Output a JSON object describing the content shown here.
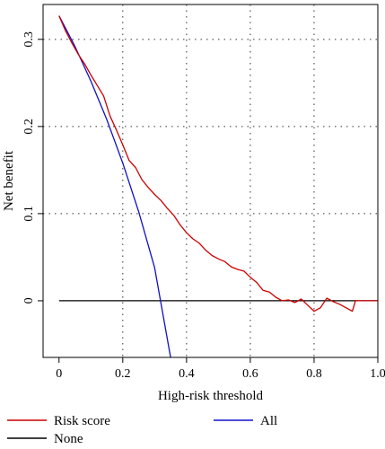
{
  "chart_data": {
    "type": "line",
    "xlabel": "High-risk threshold",
    "ylabel": "Net benefit",
    "xlim": [
      -0.05,
      1.0
    ],
    "ylim": [
      -0.065,
      0.34
    ],
    "x_ticks": [
      0,
      0.2,
      0.4,
      0.6,
      0.8,
      1.0
    ],
    "x_tick_labels": [
      "0",
      "0.2",
      "0.4",
      "0.6",
      "0.8",
      "1.0"
    ],
    "y_ticks": [
      0,
      0.1,
      0.2,
      0.3
    ],
    "y_tick_labels": [
      "0",
      "0.1",
      "0.2",
      "0.3"
    ],
    "grid": "dotted",
    "legend_position": "bottom",
    "series": [
      {
        "name": "Risk score",
        "color": "#cc0000",
        "points": [
          [
            0,
            0.327
          ],
          [
            0.02,
            0.31
          ],
          [
            0.04,
            0.296
          ],
          [
            0.06,
            0.283
          ],
          [
            0.08,
            0.272
          ],
          [
            0.1,
            0.259
          ],
          [
            0.12,
            0.247
          ],
          [
            0.14,
            0.235
          ],
          [
            0.16,
            0.212
          ],
          [
            0.18,
            0.196
          ],
          [
            0.2,
            0.179
          ],
          [
            0.22,
            0.161
          ],
          [
            0.24,
            0.153
          ],
          [
            0.26,
            0.139
          ],
          [
            0.28,
            0.13
          ],
          [
            0.3,
            0.122
          ],
          [
            0.32,
            0.115
          ],
          [
            0.34,
            0.106
          ],
          [
            0.36,
            0.098
          ],
          [
            0.38,
            0.087
          ],
          [
            0.4,
            0.078
          ],
          [
            0.42,
            0.071
          ],
          [
            0.44,
            0.066
          ],
          [
            0.46,
            0.058
          ],
          [
            0.48,
            0.052
          ],
          [
            0.5,
            0.048
          ],
          [
            0.52,
            0.045
          ],
          [
            0.54,
            0.039
          ],
          [
            0.56,
            0.036
          ],
          [
            0.58,
            0.034
          ],
          [
            0.6,
            0.027
          ],
          [
            0.62,
            0.021
          ],
          [
            0.64,
            0.012
          ],
          [
            0.66,
            0.01
          ],
          [
            0.68,
            0.004
          ],
          [
            0.7,
            0.0
          ],
          [
            0.72,
            0.001
          ],
          [
            0.74,
            -0.002
          ],
          [
            0.76,
            0.002
          ],
          [
            0.78,
            -0.005
          ],
          [
            0.8,
            -0.012
          ],
          [
            0.82,
            -0.008
          ],
          [
            0.84,
            0.003
          ],
          [
            0.86,
            -0.001
          ],
          [
            0.88,
            -0.004
          ],
          [
            0.9,
            -0.008
          ],
          [
            0.92,
            -0.012
          ],
          [
            0.93,
            0.0
          ],
          [
            1.0,
            0.0
          ]
        ]
      },
      {
        "name": "All",
        "color": "#1010c8",
        "points": [
          [
            0,
            0.327
          ],
          [
            0.05,
            0.292
          ],
          [
            0.1,
            0.252
          ],
          [
            0.15,
            0.208
          ],
          [
            0.2,
            0.158
          ],
          [
            0.25,
            0.102
          ],
          [
            0.3,
            0.038
          ],
          [
            0.35,
            -0.065
          ]
        ]
      },
      {
        "name": "None",
        "color": "#000000",
        "points": [
          [
            0,
            0
          ],
          [
            1.0,
            0
          ]
        ]
      }
    ]
  }
}
